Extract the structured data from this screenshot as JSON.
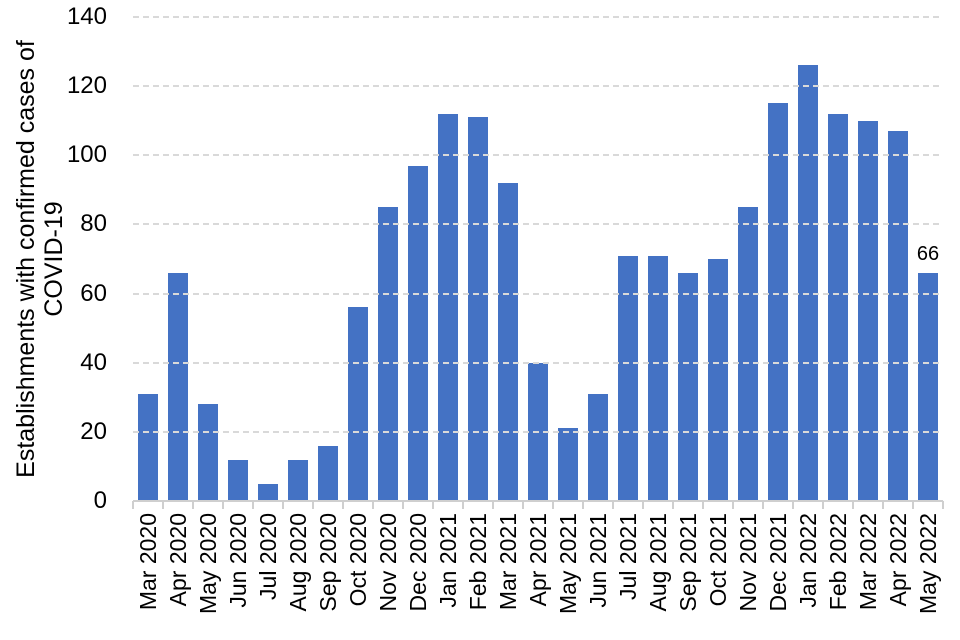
{
  "chart_data": {
    "type": "bar",
    "title": "",
    "ylabel_line1": "Establishments with confirmed cases of",
    "ylabel_line2": "COVID-19",
    "xlabel": "",
    "categories": [
      "Mar 2020",
      "Apr 2020",
      "May 2020",
      "Jun 2020",
      "Jul 2020",
      "Aug 2020",
      "Sep 2020",
      "Oct 2020",
      "Nov 2020",
      "Dec 2020",
      "Jan 2021",
      "Feb 2021",
      "Mar 2021",
      "Apr 2021",
      "May 2021",
      "Jun 2021",
      "Jul 2021",
      "Aug 2021",
      "Sep 2021",
      "Oct 2021",
      "Nov 2021",
      "Dec 2021",
      "Jan 2022",
      "Feb 2022",
      "Mar 2022",
      "Apr 2022",
      "May 2022"
    ],
    "values": [
      31,
      66,
      28,
      12,
      5,
      12,
      16,
      56,
      85,
      97,
      112,
      111,
      92,
      40,
      21,
      31,
      71,
      71,
      66,
      70,
      85,
      115,
      126,
      112,
      110,
      107,
      66
    ],
    "point_labels": [
      {
        "index": 26,
        "text": "66"
      }
    ],
    "ylim": [
      0,
      140
    ],
    "yticks": [
      0,
      20,
      40,
      60,
      80,
      100,
      120,
      140
    ],
    "grid": "horizontal-dashed",
    "legend": "none",
    "colors": {
      "bar": "#4472C4",
      "gridline": "#d9d9d9",
      "axis": "#cfcfcf",
      "text": "#000000"
    }
  }
}
